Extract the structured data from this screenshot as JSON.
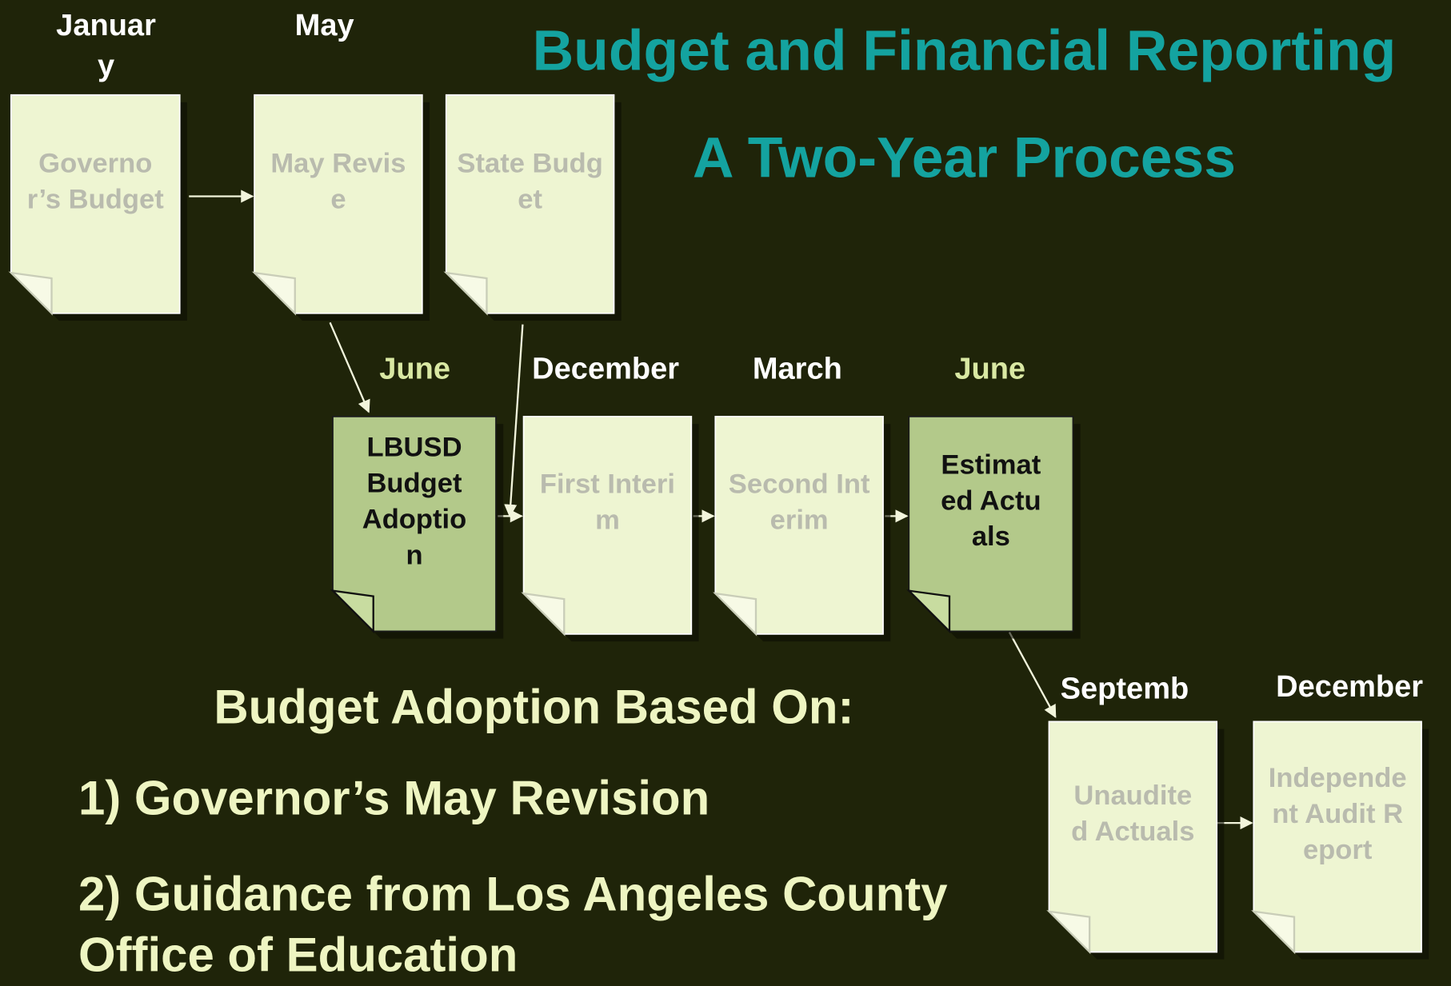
{
  "header": {
    "title": "Budget and Financial Reporting",
    "subtitle": "A Two-Year Process"
  },
  "documents": [
    {
      "month": "January",
      "label": "Governor’s Budget",
      "highlight": false
    },
    {
      "month": "May",
      "label": "May Revise",
      "highlight": false
    },
    {
      "month": null,
      "label": "State Budget",
      "highlight": false
    },
    {
      "month": "June",
      "label": "LBUSD Budget Adoption",
      "highlight": true
    },
    {
      "month": "December",
      "label": "First Interim",
      "highlight": false
    },
    {
      "month": "March",
      "label": "Second Interim",
      "highlight": false
    },
    {
      "month": "June",
      "label": "Estimated Actuals",
      "highlight": true
    },
    {
      "month": "Septemb",
      "label": "Unaudited Actuals",
      "highlight": false
    },
    {
      "month": "December",
      "label": "Independent Audit Report",
      "highlight": false
    }
  ],
  "basis": {
    "heading": "Budget Adoption Based On:",
    "items": [
      "1) Governor’s May Revision",
      "2) Guidance from Los Angeles County Office of Education"
    ]
  }
}
